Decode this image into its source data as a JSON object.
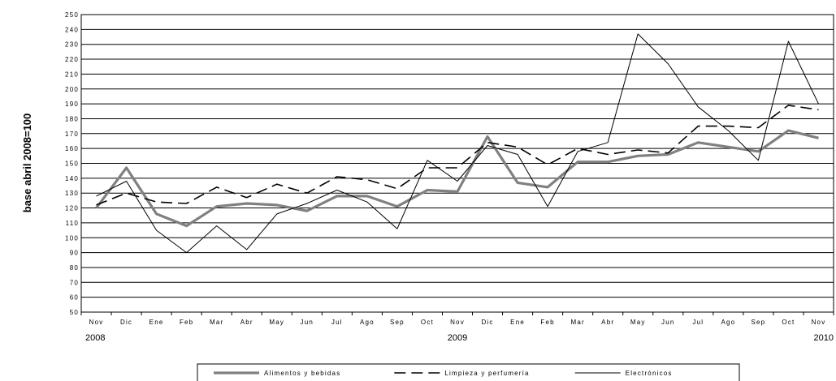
{
  "chart_data": {
    "type": "line",
    "ylabel": "base abril 2008=100",
    "categories": [
      "Nov",
      "Dic",
      "Ene",
      "Feb",
      "Mar",
      "Abr",
      "May",
      "Jun",
      "Jul",
      "Ago",
      "Sep",
      "Oct",
      "Nov",
      "Dic",
      "Ene",
      "Feb",
      "Mar",
      "Abr",
      "May",
      "Jun",
      "Jul",
      "Ago",
      "Sep",
      "Oct",
      "Nov"
    ],
    "year_labels": [
      {
        "text": "2008",
        "index": 0
      },
      {
        "text": "2009",
        "index": 12
      },
      {
        "text": "2010",
        "index": 24
      }
    ],
    "ylim": [
      50,
      250
    ],
    "ytick_step": 10,
    "ytick_labels": [
      "50",
      "60",
      "70",
      "80",
      "90",
      "100",
      "110",
      "120",
      "130",
      "140",
      "150",
      "160",
      "170",
      "180",
      "190",
      "200",
      "210",
      "220",
      "230",
      "240",
      "250"
    ],
    "grid": true,
    "legend_position": "bottom",
    "series": [
      {
        "name": "Alimentos y bebidas",
        "color": "#808080",
        "style": "thick",
        "values": [
          120,
          147,
          116,
          108,
          121,
          123,
          122,
          118,
          128,
          128,
          121,
          132,
          131,
          168,
          137,
          134,
          151,
          151,
          155,
          156,
          164,
          161,
          158,
          172,
          167
        ]
      },
      {
        "name": "Limpieza y perfumería",
        "color": "#000000",
        "style": "dashed",
        "values": [
          122,
          130,
          124,
          123,
          134,
          127,
          136,
          130,
          141,
          139,
          133,
          147,
          147,
          164,
          161,
          149,
          160,
          156,
          159,
          157,
          175,
          175,
          174,
          189,
          186
        ]
      },
      {
        "name": "Electrónicos",
        "color": "#000000",
        "style": "thin",
        "values": [
          128,
          138,
          105,
          90,
          108,
          92,
          116,
          123,
          132,
          124,
          106,
          152,
          138,
          162,
          156,
          121,
          158,
          164,
          237,
          217,
          188,
          172,
          152,
          232,
          190
        ]
      }
    ]
  }
}
